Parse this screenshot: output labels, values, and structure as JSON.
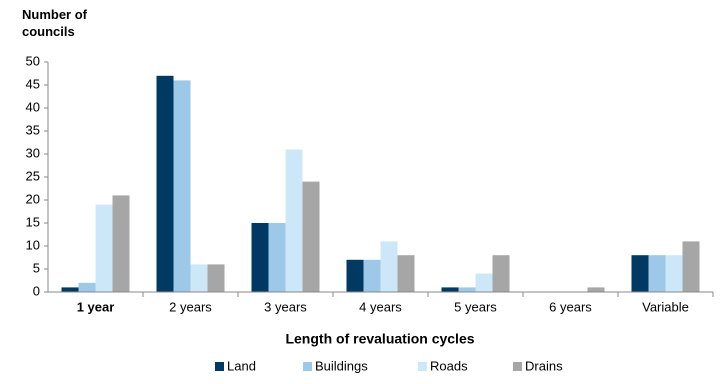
{
  "chart_data": {
    "type": "bar",
    "y_axis_label": "Number of councils",
    "x_axis_label": "Length of revaluation cycles",
    "categories": [
      "1 year",
      "2 years",
      "3 years",
      "4 years",
      "5 years",
      "6 years",
      "Variable"
    ],
    "series": [
      {
        "name": "Land",
        "color": "#003a63",
        "values": [
          1,
          47,
          15,
          7,
          1,
          0,
          8
        ]
      },
      {
        "name": "Buildings",
        "color": "#9dc8e8",
        "values": [
          2,
          46,
          15,
          7,
          1,
          0,
          8
        ]
      },
      {
        "name": "Roads",
        "color": "#cce8f8",
        "values": [
          19,
          6,
          31,
          11,
          4,
          0,
          8
        ]
      },
      {
        "name": "Drains",
        "color": "#a6a6a6",
        "values": [
          21,
          6,
          24,
          8,
          8,
          1,
          11
        ]
      }
    ],
    "ylim": [
      0,
      50
    ],
    "yticks": [
      0,
      5,
      10,
      15,
      20,
      25,
      30,
      35,
      40,
      45,
      50
    ],
    "grid": false,
    "legend": "bottom"
  }
}
